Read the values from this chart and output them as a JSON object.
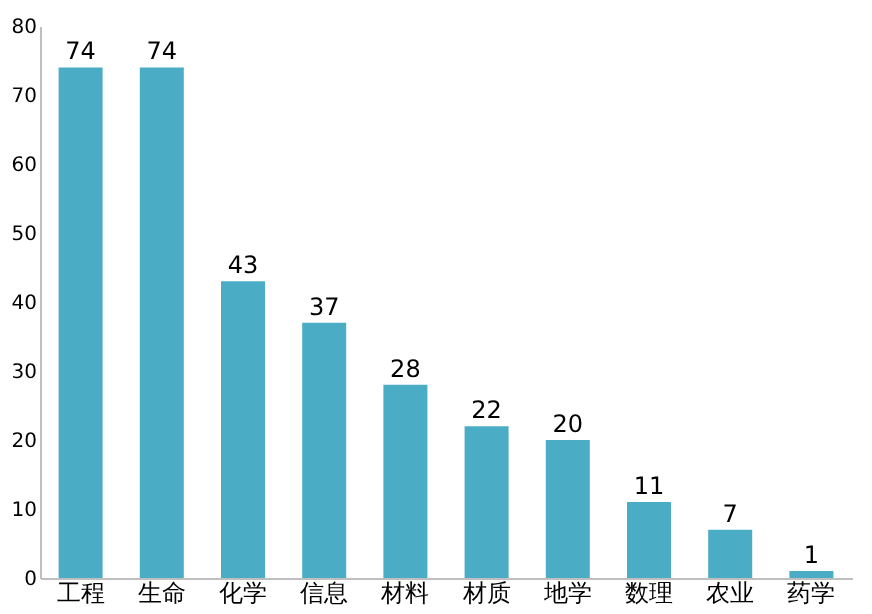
{
  "chart_data": {
    "type": "bar",
    "categories": [
      "工程",
      "生命",
      "化学",
      "信息",
      "材料",
      "材质",
      "地学",
      "数理",
      "农业",
      "药学"
    ],
    "values": [
      74,
      74,
      43,
      37,
      28,
      22,
      20,
      11,
      7,
      1
    ],
    "color": "#4bacc6",
    "ylim": [
      0,
      80
    ],
    "yticks": [
      0,
      10,
      20,
      30,
      40,
      50,
      60,
      70,
      80
    ],
    "grid": false,
    "data_labels": true
  }
}
